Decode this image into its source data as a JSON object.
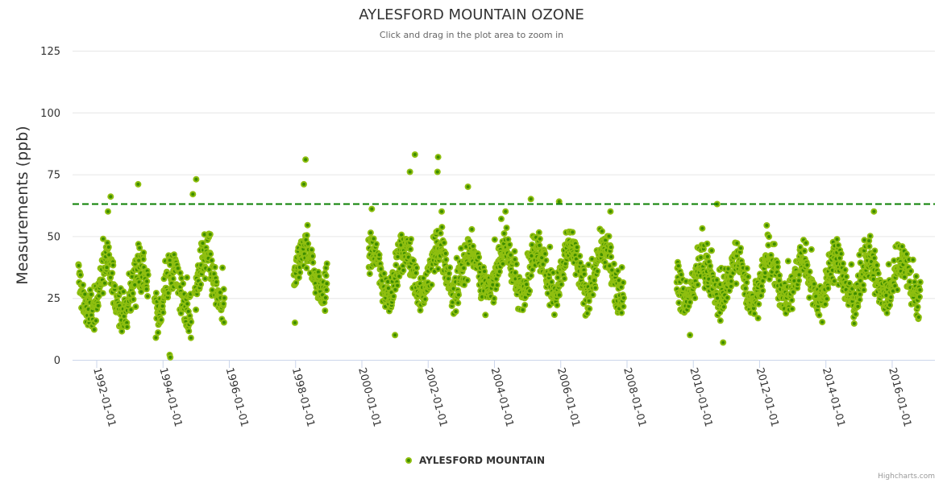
{
  "chart_data": {
    "type": "scatter",
    "title": "AYLESFORD MOUNTAIN OZONE",
    "subtitle": "Click and drag in the plot area to zoom in",
    "xlabel": "",
    "ylabel": "Measurements (ppb)",
    "xlim": [
      1991.27,
      2017.29
    ],
    "ylim": [
      0,
      125
    ],
    "yticks": [
      0,
      25,
      50,
      75,
      100,
      125
    ],
    "xticks": [
      {
        "value": 1992,
        "label": "1992-01-01"
      },
      {
        "value": 1994,
        "label": "1994-01-01"
      },
      {
        "value": 1996,
        "label": "1996-01-01"
      },
      {
        "value": 1998,
        "label": "1998-01-01"
      },
      {
        "value": 2000,
        "label": "2000-01-01"
      },
      {
        "value": 2002,
        "label": "2002-01-01"
      },
      {
        "value": 2004,
        "label": "2004-01-01"
      },
      {
        "value": 2006,
        "label": "2006-01-01"
      },
      {
        "value": 2008,
        "label": "2008-01-01"
      },
      {
        "value": 2010,
        "label": "2010-01-01"
      },
      {
        "value": 2012,
        "label": "2012-01-01"
      },
      {
        "value": 2014,
        "label": "2014-01-01"
      },
      {
        "value": 2016,
        "label": "2016-01-01"
      }
    ],
    "grid": true,
    "reference_line": {
      "value": 63,
      "style": "dashed",
      "color": "#0a7f00"
    },
    "legend": {
      "position": "bottom-center",
      "entries": [
        "AYLESFORD MOUNTAIN"
      ]
    },
    "credits": "Highcharts.com",
    "series": [
      {
        "name": "AYLESFORD MOUNTAIN",
        "fill_color": "#8fbf10",
        "center_color": "#3d8c00",
        "segments": [
          {
            "start": 1991.45,
            "end": 1993.55,
            "mean": 28,
            "seasonal_amplitude": 10,
            "spread": 8
          },
          {
            "start": 1993.75,
            "end": 1994.85,
            "mean": 27,
            "seasonal_amplitude": 9,
            "spread": 8
          },
          {
            "start": 1994.95,
            "end": 1995.85,
            "mean": 31,
            "seasonal_amplitude": 10,
            "spread": 8
          },
          {
            "start": 1997.95,
            "end": 1998.95,
            "mean": 36,
            "seasonal_amplitude": 9,
            "spread": 7
          },
          {
            "start": 2000.2,
            "end": 2007.9,
            "mean": 36,
            "seasonal_amplitude": 9,
            "spread": 7
          },
          {
            "start": 2009.5,
            "end": 2016.85,
            "mean": 32,
            "seasonal_amplitude": 8,
            "spread": 7
          }
        ],
        "notable_points": [
          [
            1992.42,
            66
          ],
          [
            1993.25,
            71
          ],
          [
            1994.2,
            2
          ],
          [
            1994.22,
            1
          ],
          [
            1995.0,
            73
          ],
          [
            1994.9,
            67
          ],
          [
            1998.3,
            81
          ],
          [
            1998.25,
            71
          ],
          [
            1997.98,
            15
          ],
          [
            2000.3,
            61
          ],
          [
            2001.45,
            76
          ],
          [
            2001.6,
            83
          ],
          [
            2002.3,
            82
          ],
          [
            2002.28,
            76
          ],
          [
            2003.2,
            70
          ],
          [
            2005.1,
            65
          ],
          [
            2005.95,
            64
          ],
          [
            2007.5,
            60
          ],
          [
            2010.72,
            63
          ],
          [
            2010.9,
            7
          ],
          [
            2015.45,
            60
          ],
          [
            2009.9,
            10
          ],
          [
            2001.0,
            10
          ]
        ]
      }
    ]
  }
}
